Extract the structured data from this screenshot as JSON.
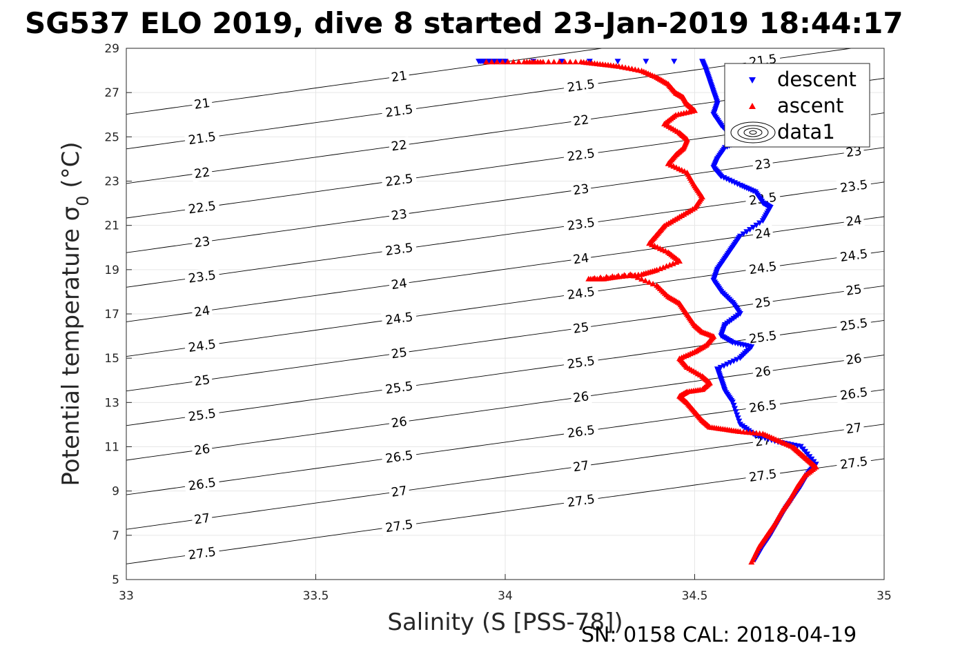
{
  "chart_data": {
    "type": "scatter",
    "title": "SG537 ELO 2019, dive 8 started 23-Jan-2019 18:44:17",
    "xlabel": "Salinity (S [PSS-78])",
    "ylabel": "Potential temperature σ_0 (°C)",
    "ylabel_main": "Potential temperature σ",
    "ylabel_sub": "0",
    "ylabel_tail": " (°C)",
    "xlim": [
      33,
      35
    ],
    "ylim": [
      5,
      29
    ],
    "xticks": [
      "33",
      "33.5",
      "34",
      "34.5",
      "35"
    ],
    "yticks": [
      "5",
      "7",
      "9",
      "11",
      "13",
      "15",
      "17",
      "19",
      "21",
      "23",
      "25",
      "27",
      "29"
    ],
    "grid": true,
    "legend_position": "top-right",
    "legend": [
      "descent",
      "ascent",
      "data1"
    ],
    "footer": "SN: 0158  CAL: 2018-04-19",
    "colors": {
      "descent": "#0000ff",
      "ascent": "#ff0000",
      "contour": "#000000"
    },
    "contour_labels": [
      "21",
      "21.5",
      "22",
      "22.5",
      "23",
      "23.5",
      "24",
      "24.5",
      "25",
      "25.5",
      "26",
      "26.5",
      "27",
      "27.5"
    ],
    "series": [
      {
        "name": "descent",
        "marker": "triangle-down",
        "x": [
          33.93,
          33.96,
          34.0,
          34.52,
          34.53,
          34.54,
          34.55,
          34.56,
          34.55,
          34.57,
          34.6,
          34.62,
          34.58,
          34.56,
          34.55,
          34.57,
          34.62,
          34.66,
          34.68,
          34.7,
          34.68,
          34.62,
          34.6,
          34.58,
          34.56,
          34.55,
          34.57,
          34.6,
          34.62,
          34.58,
          34.57,
          34.6,
          34.65,
          34.62,
          34.56,
          34.57,
          34.58,
          34.6,
          34.62,
          34.66,
          34.72,
          34.78,
          34.82,
          34.8,
          34.78,
          34.76,
          34.74,
          34.72,
          34.7,
          34.68,
          34.66
        ],
        "y": [
          28.4,
          28.4,
          28.4,
          28.4,
          28.0,
          27.5,
          27.0,
          26.5,
          26.0,
          25.5,
          25.0,
          24.8,
          24.5,
          24.0,
          23.6,
          23.2,
          22.8,
          22.5,
          22.0,
          21.8,
          21.2,
          20.5,
          20.0,
          19.5,
          19.0,
          18.5,
          18.0,
          17.5,
          17.0,
          16.5,
          16.0,
          15.7,
          15.5,
          15.0,
          14.5,
          14.0,
          13.5,
          13.0,
          12.0,
          11.5,
          11.2,
          11.0,
          10.2,
          9.8,
          9.2,
          8.7,
          8.2,
          7.6,
          7.0,
          6.5,
          5.9
        ]
      },
      {
        "name": "ascent",
        "marker": "triangle-up",
        "x": [
          33.95,
          34.05,
          34.1,
          34.2,
          34.25,
          34.3,
          34.36,
          34.4,
          34.43,
          34.45,
          34.47,
          34.48,
          34.5,
          34.45,
          34.42,
          34.46,
          34.48,
          34.47,
          34.45,
          34.43,
          34.48,
          34.5,
          34.52,
          34.5,
          34.46,
          34.42,
          34.4,
          34.38,
          34.43,
          34.46,
          34.4,
          34.36,
          34.3,
          34.26,
          34.22,
          34.33,
          34.4,
          34.43,
          34.46,
          34.48,
          34.5,
          34.52,
          34.55,
          34.53,
          34.5,
          34.46,
          34.48,
          34.52,
          34.54,
          34.52,
          34.48,
          34.46,
          34.48,
          34.5,
          34.52,
          34.54,
          34.58,
          34.62,
          34.68,
          34.72,
          34.76,
          34.78,
          34.8,
          34.82,
          34.79,
          34.77,
          34.75,
          34.73,
          34.71,
          34.69,
          34.67,
          34.65
        ],
        "y": [
          28.4,
          28.4,
          28.4,
          28.4,
          28.3,
          28.2,
          28.0,
          27.7,
          27.4,
          27.0,
          26.8,
          26.5,
          26.2,
          26.0,
          25.6,
          25.2,
          24.9,
          24.5,
          24.2,
          23.8,
          23.4,
          22.8,
          22.3,
          21.8,
          21.4,
          21.0,
          20.6,
          20.2,
          19.8,
          19.4,
          19.0,
          18.8,
          18.7,
          18.6,
          18.6,
          18.8,
          18.3,
          17.8,
          17.5,
          17.0,
          16.5,
          16.2,
          16.0,
          15.6,
          15.3,
          15.0,
          14.6,
          14.2,
          13.9,
          13.6,
          13.5,
          13.3,
          13.0,
          12.6,
          12.2,
          11.9,
          11.8,
          11.7,
          11.6,
          11.3,
          11.0,
          10.7,
          10.4,
          10.1,
          9.7,
          9.2,
          8.6,
          8.1,
          7.5,
          7.0,
          6.5,
          5.8
        ]
      }
    ]
  }
}
